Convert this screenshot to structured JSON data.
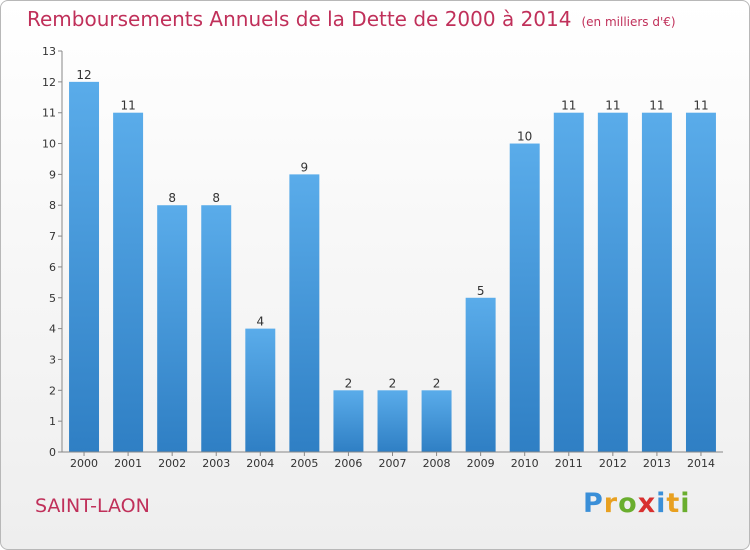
{
  "header": {
    "title": "Remboursements Annuels de la Dette de 2000 à 2014",
    "subtitle": "(en milliers d'€)"
  },
  "footer": {
    "city": "SAINT-LAON",
    "logo": [
      "P",
      "r",
      "o",
      "x",
      "i",
      "t",
      "i"
    ],
    "logo_colors": [
      "#3a8fd8",
      "#e8a020",
      "#6aae2e",
      "#d8302f",
      "#3a8fd8",
      "#e8a020",
      "#6aae2e"
    ]
  },
  "chart_data": {
    "type": "bar",
    "categories": [
      "2000",
      "2001",
      "2002",
      "2003",
      "2004",
      "2005",
      "2006",
      "2007",
      "2008",
      "2009",
      "2010",
      "2011",
      "2012",
      "2013",
      "2014"
    ],
    "values": [
      12,
      11,
      8,
      8,
      4,
      9,
      2,
      2,
      2,
      5,
      10,
      11,
      11,
      11,
      11
    ],
    "title": "Remboursements Annuels de la Dette de 2000 à 2014",
    "xlabel": "",
    "ylabel": "",
    "ylim": [
      0,
      13
    ],
    "yticks": [
      0,
      1,
      2,
      3,
      4,
      5,
      6,
      7,
      8,
      9,
      10,
      11,
      12,
      13
    ],
    "grid": false,
    "bar_color": "#4a9fe0"
  }
}
